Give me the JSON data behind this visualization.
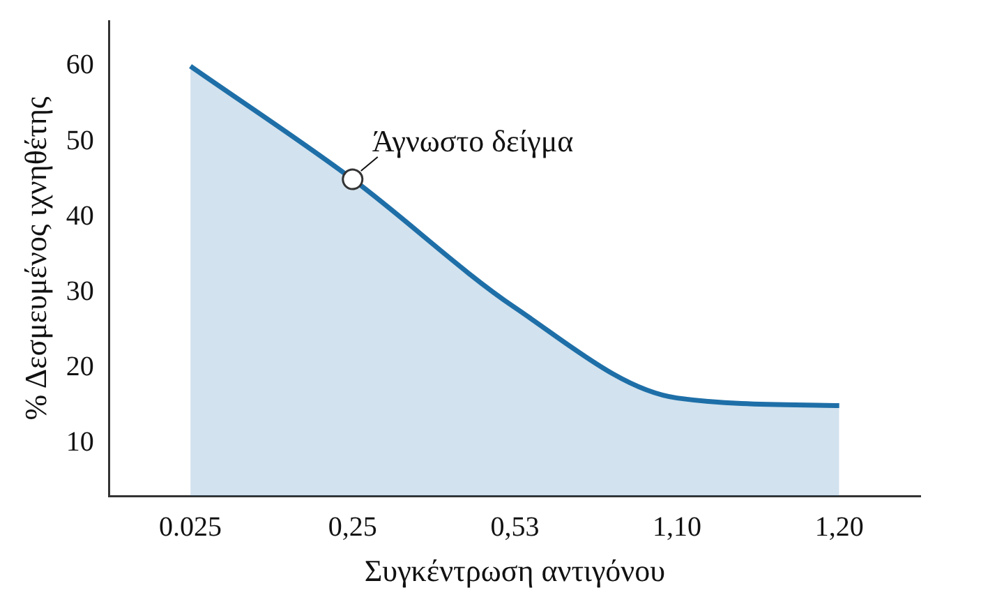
{
  "chart_data": {
    "type": "area",
    "xlabel": "Συγκέντρωση αντιγόνου",
    "ylabel": "% Δεσμευμένος ιχνηθέτης",
    "categories": [
      "0.025",
      "0,25",
      "0,53",
      "1,10",
      "1,20"
    ],
    "ylim": [
      3,
      66
    ],
    "yticks": [
      10,
      20,
      30,
      40,
      50,
      60
    ],
    "grid": false,
    "marker": "none",
    "series": [
      {
        "color": "#1e6fa8",
        "values": [
          60,
          45,
          28,
          16,
          15
        ]
      },
      {
        "type": "scatter",
        "x": [
          "0,25"
        ],
        "values": [
          45
        ],
        "color": "#ffffff",
        "marker": "circle"
      }
    ],
    "annotations": [
      {
        "text": "Άγνωστο δείγμα",
        "x": "0,25",
        "y": 45
      }
    ]
  }
}
